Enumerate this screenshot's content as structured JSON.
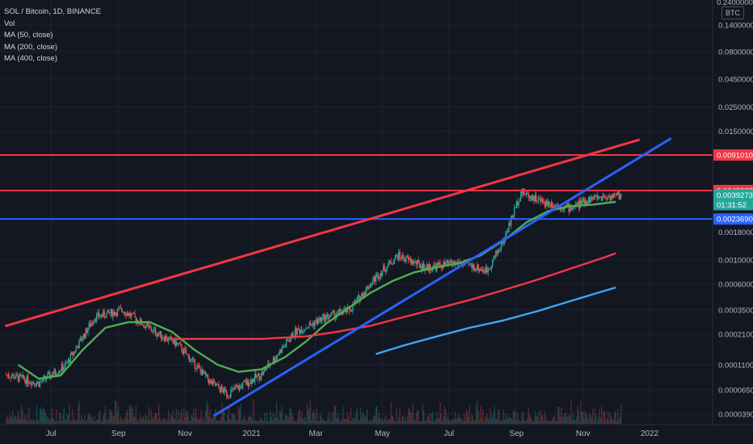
{
  "legend": {
    "symbol": "SOL / Bitcoin, 1D, BINANCE",
    "vol": "Vol",
    "ma50": "MA (50, close)",
    "ma200": "MA (200, close)",
    "ma400": "MA (400, close)"
  },
  "currency_badge": "BTC",
  "top_partial_tick": "0.2400000",
  "colors": {
    "background": "#131722",
    "grid": "#1f2330",
    "red_line": "#f23645",
    "blue_line": "#2962ff",
    "ma50": "#4caf50",
    "ma200": "#f23645",
    "ma400": "#42a5f5",
    "up": "#26a69a",
    "down": "#ef5350"
  },
  "chart_data": {
    "type": "candlestick",
    "y_scale": "log",
    "y_ticks": [
      "0.1400000",
      "0.0800000",
      "0.0450000",
      "0.0250000",
      "0.0150000",
      "0.0091010",
      "0.0043088",
      "0.0039273",
      "0.0023690",
      "0.0018000",
      "0.0010000",
      "0.0006000",
      "0.0003500",
      "0.0002100",
      "0.0001100",
      "0.0000650",
      "0.0000390"
    ],
    "y_tick_values": [
      0.14,
      0.08,
      0.045,
      0.025,
      0.015,
      0.009101,
      0.0043088,
      0.0039273,
      0.002369,
      0.0018,
      0.001,
      0.0006,
      0.00035,
      0.00021,
      0.00011,
      6.5e-05,
      3.9e-05
    ],
    "x_ticks": [
      "Jul",
      "Sep",
      "Nov",
      "2021",
      "Mar",
      "May",
      "Jul",
      "Sep",
      "Nov",
      "2022"
    ],
    "x_tick_dates": [
      "2020-07-01",
      "2020-09-01",
      "2020-11-01",
      "2021-01-01",
      "2021-03-01",
      "2021-05-01",
      "2021-07-01",
      "2021-09-01",
      "2021-11-01",
      "2022-01-01"
    ],
    "price_tags": [
      {
        "label": "0.0091010",
        "value": 0.009101,
        "color": "#f23645"
      },
      {
        "label": "0.0043088",
        "value": 0.0043088,
        "color": "#f23645"
      },
      {
        "label": "0.0039273",
        "value": 0.0039273,
        "color": "#26a69a",
        "countdown": "01:31:52"
      },
      {
        "label": "0.0023690",
        "value": 0.002369,
        "color": "#2962ff"
      }
    ],
    "horizontal_lines": [
      {
        "value": 0.009101,
        "color": "#f23645"
      },
      {
        "value": 0.0043088,
        "color": "#f23645"
      },
      {
        "value": 0.002369,
        "color": "#2962ff"
      }
    ],
    "trend_lines": [
      {
        "color": "#f23645",
        "from": {
          "date": "2020-05-21",
          "value": 0.00025
        },
        "to": {
          "date": "2021-12-22",
          "value": 0.0125
        }
      },
      {
        "color": "#2962ff",
        "from": {
          "date": "2020-11-28",
          "value": 3.8e-05
        },
        "to": {
          "date": "2022-01-20",
          "value": 0.0128
        }
      }
    ],
    "series": [
      {
        "name": "MA (50, close)",
        "color": "#4caf50",
        "points": [
          [
            "2020-06-01",
            0.00011
          ],
          [
            "2020-06-20",
            8.2e-05
          ],
          [
            "2020-07-10",
            8.8e-05
          ],
          [
            "2020-07-30",
            0.00015
          ],
          [
            "2020-08-20",
            0.00024
          ],
          [
            "2020-09-10",
            0.00027
          ],
          [
            "2020-09-30",
            0.00027
          ],
          [
            "2020-10-20",
            0.00022
          ],
          [
            "2020-11-10",
            0.00015
          ],
          [
            "2020-12-01",
            0.00011
          ],
          [
            "2020-12-20",
            9.5e-05
          ],
          [
            "2021-01-10",
            0.0001
          ],
          [
            "2021-02-01",
            0.00013
          ],
          [
            "2021-02-20",
            0.00018
          ],
          [
            "2021-03-10",
            0.00026
          ],
          [
            "2021-04-01",
            0.00037
          ],
          [
            "2021-04-20",
            0.0005
          ],
          [
            "2021-05-10",
            0.00064
          ],
          [
            "2021-05-30",
            0.00077
          ],
          [
            "2021-06-20",
            0.00086
          ],
          [
            "2021-07-10",
            0.00093
          ],
          [
            "2021-07-30",
            0.0011
          ],
          [
            "2021-08-20",
            0.0015
          ],
          [
            "2021-09-10",
            0.0022
          ],
          [
            "2021-09-30",
            0.0028
          ],
          [
            "2021-10-20",
            0.0031
          ],
          [
            "2021-11-10",
            0.0032
          ],
          [
            "2021-12-01",
            0.0034
          ]
        ]
      },
      {
        "name": "MA (200, close)",
        "color": "#f23645",
        "points": [
          [
            "2020-10-18",
            0.00019
          ],
          [
            "2020-12-01",
            0.00019
          ],
          [
            "2021-01-10",
            0.00019
          ],
          [
            "2021-02-20",
            0.0002
          ],
          [
            "2021-03-20",
            0.00022
          ],
          [
            "2021-04-20",
            0.00025
          ],
          [
            "2021-05-20",
            0.0003
          ],
          [
            "2021-06-20",
            0.00036
          ],
          [
            "2021-07-20",
            0.00043
          ],
          [
            "2021-08-20",
            0.00053
          ],
          [
            "2021-09-20",
            0.00066
          ],
          [
            "2021-10-20",
            0.00083
          ],
          [
            "2021-11-20",
            0.00105
          ],
          [
            "2021-12-01",
            0.00115
          ]
        ]
      },
      {
        "name": "MA (400, close)",
        "color": "#42a5f5",
        "points": [
          [
            "2021-04-25",
            0.000138
          ],
          [
            "2021-05-20",
            0.000165
          ],
          [
            "2021-06-20",
            0.0002
          ],
          [
            "2021-07-20",
            0.00024
          ],
          [
            "2021-08-20",
            0.00028
          ],
          [
            "2021-09-20",
            0.00034
          ],
          [
            "2021-10-20",
            0.00042
          ],
          [
            "2021-11-20",
            0.00052
          ],
          [
            "2021-12-01",
            0.00056
          ]
        ]
      }
    ]
  }
}
